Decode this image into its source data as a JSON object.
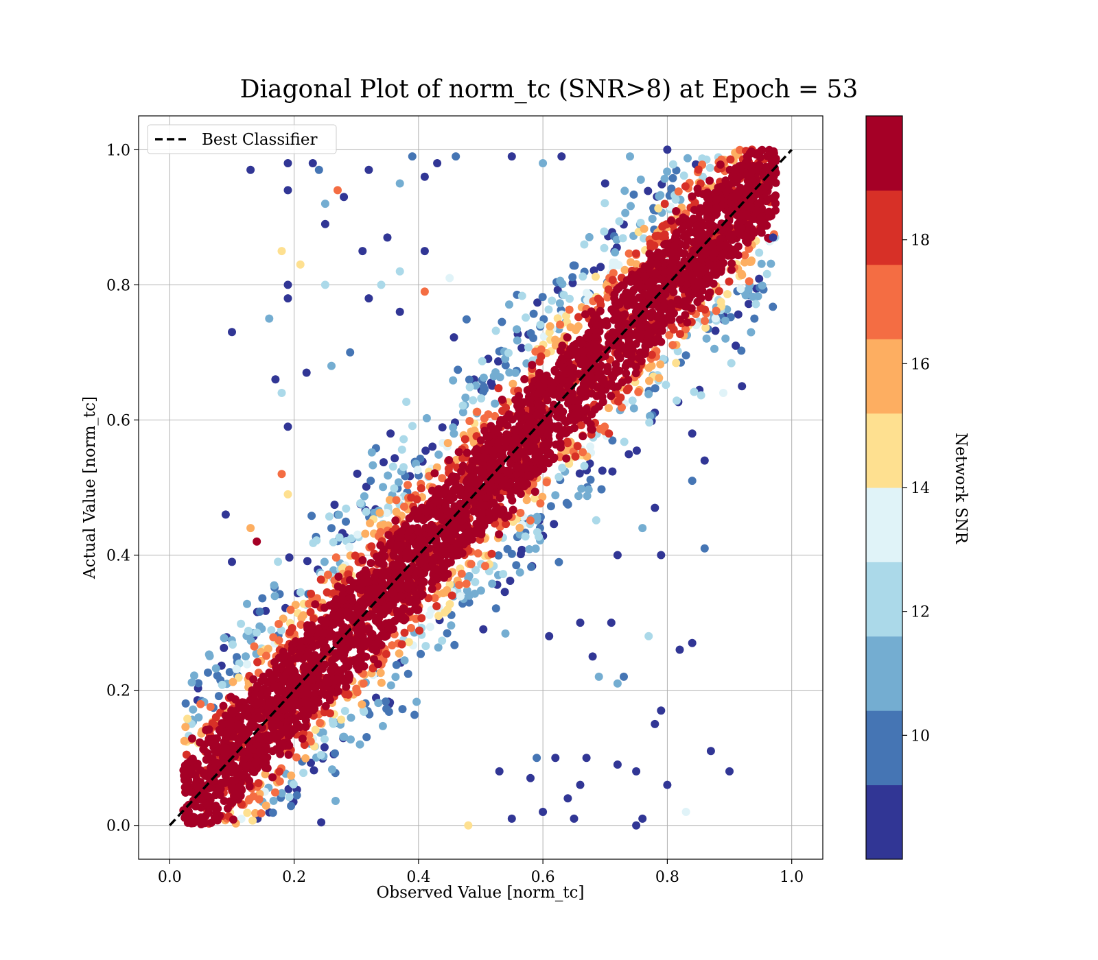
{
  "chart_data": {
    "type": "scatter",
    "title": "Diagonal Plot of norm_tc (SNR>8) at Epoch = 53",
    "xlabel": "Observed Value [norm_tc]",
    "ylabel": "Actual Value [norm_tc]",
    "xlim": [
      -0.05,
      1.05
    ],
    "ylim": [
      -0.05,
      1.05
    ],
    "xticks": [
      "0.0",
      "0.2",
      "0.4",
      "0.6",
      "0.8",
      "1.0"
    ],
    "yticks": [
      "0.0",
      "0.2",
      "0.4",
      "0.6",
      "0.8",
      "1.0"
    ],
    "grid": true,
    "legend": {
      "placement": "top-left",
      "entries": [
        {
          "label": "Best Classifier",
          "style": "dashed",
          "color": "#000000"
        }
      ]
    },
    "reference_line": {
      "x": [
        0.0,
        1.0
      ],
      "y": [
        0.0,
        1.0
      ]
    },
    "colorbar": {
      "label": "Network SNR",
      "range": [
        8,
        20
      ],
      "ticks": [
        "10",
        "12",
        "14",
        "16",
        "18"
      ],
      "tick_values": [
        10,
        12,
        14,
        16,
        18
      ],
      "colors": [
        "#313695",
        "#4575b4",
        "#74add1",
        "#abd9e9",
        "#e0f3f8",
        "#fee090",
        "#fdae61",
        "#f46d43",
        "#d73027",
        "#a50026"
      ]
    },
    "outlier_points": [
      {
        "x": 0.13,
        "y": 0.97,
        "snr": 9
      },
      {
        "x": 0.19,
        "y": 0.98,
        "snr": 9
      },
      {
        "x": 0.19,
        "y": 0.94,
        "snr": 9
      },
      {
        "x": 0.23,
        "y": 0.98,
        "snr": 9
      },
      {
        "x": 0.24,
        "y": 0.97,
        "snr": 10
      },
      {
        "x": 0.27,
        "y": 0.94,
        "snr": 17
      },
      {
        "x": 0.25,
        "y": 0.92,
        "snr": 11
      },
      {
        "x": 0.28,
        "y": 0.93,
        "snr": 9
      },
      {
        "x": 0.25,
        "y": 0.89,
        "snr": 9
      },
      {
        "x": 0.32,
        "y": 0.97,
        "snr": 9
      },
      {
        "x": 0.31,
        "y": 0.85,
        "snr": 9
      },
      {
        "x": 0.18,
        "y": 0.85,
        "snr": 15
      },
      {
        "x": 0.21,
        "y": 0.83,
        "snr": 14
      },
      {
        "x": 0.19,
        "y": 0.8,
        "snr": 9
      },
      {
        "x": 0.19,
        "y": 0.78,
        "snr": 9
      },
      {
        "x": 0.25,
        "y": 0.8,
        "snr": 12
      },
      {
        "x": 0.16,
        "y": 0.75,
        "snr": 11
      },
      {
        "x": 0.1,
        "y": 0.73,
        "snr": 9
      },
      {
        "x": 0.17,
        "y": 0.66,
        "snr": 9
      },
      {
        "x": 0.18,
        "y": 0.64,
        "snr": 12
      },
      {
        "x": 0.19,
        "y": 0.59,
        "snr": 9
      },
      {
        "x": 0.18,
        "y": 0.52,
        "snr": 17
      },
      {
        "x": 0.19,
        "y": 0.49,
        "snr": 15
      },
      {
        "x": 0.09,
        "y": 0.46,
        "snr": 9
      },
      {
        "x": 0.13,
        "y": 0.44,
        "snr": 16
      },
      {
        "x": 0.14,
        "y": 0.42,
        "snr": 19
      },
      {
        "x": 0.1,
        "y": 0.39,
        "snr": 9
      },
      {
        "x": 0.39,
        "y": 0.99,
        "snr": 10
      },
      {
        "x": 0.43,
        "y": 0.98,
        "snr": 9
      },
      {
        "x": 0.37,
        "y": 0.95,
        "snr": 11
      },
      {
        "x": 0.41,
        "y": 0.96,
        "snr": 9
      },
      {
        "x": 0.46,
        "y": 0.99,
        "snr": 10
      },
      {
        "x": 0.41,
        "y": 0.85,
        "snr": 9
      },
      {
        "x": 0.35,
        "y": 0.87,
        "snr": 9
      },
      {
        "x": 0.37,
        "y": 0.82,
        "snr": 12
      },
      {
        "x": 0.41,
        "y": 0.79,
        "snr": 17
      },
      {
        "x": 0.34,
        "y": 0.8,
        "snr": 12
      },
      {
        "x": 0.32,
        "y": 0.78,
        "snr": 9
      },
      {
        "x": 0.37,
        "y": 0.76,
        "snr": 9
      },
      {
        "x": 0.45,
        "y": 0.81,
        "snr": 13
      },
      {
        "x": 0.29,
        "y": 0.7,
        "snr": 10
      },
      {
        "x": 0.26,
        "y": 0.68,
        "snr": 11
      },
      {
        "x": 0.22,
        "y": 0.67,
        "snr": 9
      },
      {
        "x": 0.61,
        "y": 0.28,
        "snr": 9
      },
      {
        "x": 0.66,
        "y": 0.3,
        "snr": 9
      },
      {
        "x": 0.71,
        "y": 0.3,
        "snr": 9
      },
      {
        "x": 0.77,
        "y": 0.28,
        "snr": 12
      },
      {
        "x": 0.82,
        "y": 0.26,
        "snr": 9
      },
      {
        "x": 0.84,
        "y": 0.27,
        "snr": 9
      },
      {
        "x": 0.72,
        "y": 0.21,
        "snr": 11
      },
      {
        "x": 0.68,
        "y": 0.25,
        "snr": 9
      },
      {
        "x": 0.79,
        "y": 0.17,
        "snr": 9
      },
      {
        "x": 0.78,
        "y": 0.15,
        "snr": 9
      },
      {
        "x": 0.69,
        "y": 0.22,
        "snr": 11
      },
      {
        "x": 0.73,
        "y": 0.22,
        "snr": 10
      },
      {
        "x": 0.75,
        "y": 0.08,
        "snr": 9
      },
      {
        "x": 0.72,
        "y": 0.09,
        "snr": 9
      },
      {
        "x": 0.87,
        "y": 0.11,
        "snr": 9
      },
      {
        "x": 0.9,
        "y": 0.08,
        "snr": 9
      },
      {
        "x": 0.8,
        "y": 0.06,
        "snr": 9
      },
      {
        "x": 0.75,
        "y": 0.0,
        "snr": 9
      },
      {
        "x": 0.76,
        "y": 0.01,
        "snr": 9
      },
      {
        "x": 0.83,
        "y": 0.02,
        "snr": 13
      },
      {
        "x": 0.65,
        "y": 0.01,
        "snr": 9
      },
      {
        "x": 0.6,
        "y": 0.02,
        "snr": 9
      },
      {
        "x": 0.55,
        "y": 0.01,
        "snr": 9
      },
      {
        "x": 0.48,
        "y": 0.0,
        "snr": 15
      },
      {
        "x": 0.62,
        "y": 0.1,
        "snr": 9
      },
      {
        "x": 0.67,
        "y": 0.1,
        "snr": 9
      },
      {
        "x": 0.66,
        "y": 0.06,
        "snr": 9
      },
      {
        "x": 0.64,
        "y": 0.04,
        "snr": 9
      },
      {
        "x": 0.53,
        "y": 0.08,
        "snr": 9
      },
      {
        "x": 0.58,
        "y": 0.07,
        "snr": 9
      },
      {
        "x": 0.59,
        "y": 0.1,
        "snr": 10
      },
      {
        "x": 0.86,
        "y": 0.41,
        "snr": 10
      },
      {
        "x": 0.79,
        "y": 0.4,
        "snr": 9
      },
      {
        "x": 0.76,
        "y": 0.44,
        "snr": 11
      },
      {
        "x": 0.72,
        "y": 0.4,
        "snr": 9
      },
      {
        "x": 0.78,
        "y": 0.47,
        "snr": 9
      },
      {
        "x": 0.84,
        "y": 0.51,
        "snr": 10
      },
      {
        "x": 0.86,
        "y": 0.54,
        "snr": 9
      },
      {
        "x": 0.84,
        "y": 0.58,
        "snr": 9
      },
      {
        "x": 0.91,
        "y": 0.71,
        "snr": 9
      },
      {
        "x": 0.94,
        "y": 0.75,
        "snr": 10
      },
      {
        "x": 0.89,
        "y": 0.64,
        "snr": 13
      },
      {
        "x": 0.92,
        "y": 0.65,
        "snr": 9
      },
      {
        "x": 0.97,
        "y": 0.87,
        "snr": 9
      },
      {
        "x": 0.55,
        "y": 0.99,
        "snr": 9
      },
      {
        "x": 0.6,
        "y": 0.98,
        "snr": 11
      },
      {
        "x": 0.63,
        "y": 0.99,
        "snr": 9
      },
      {
        "x": 0.7,
        "y": 0.95,
        "snr": 9
      },
      {
        "x": 0.74,
        "y": 0.99,
        "snr": 11
      },
      {
        "x": 0.8,
        "y": 1.0,
        "snr": 9
      }
    ]
  }
}
